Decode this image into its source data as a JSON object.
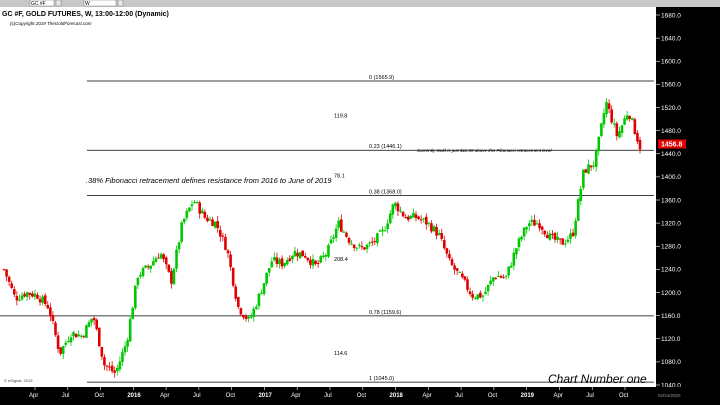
{
  "toolbar": {
    "symbol_field": "GC #F",
    "period_field": "W"
  },
  "chart_title": "GC #F, GOLD FUTURES, W, 13:00-12:00 (Dynamic)",
  "copyright": "(c)Copyright 2019 TheGoldForecast.com",
  "watermark_label": "Chart Number one",
  "footer_left": "© eSignal, 2019",
  "footer_right": "02/24/2020",
  "colors": {
    "up_candle": "#00c800",
    "down_candle": "#e00000",
    "price_badge": "#e00000",
    "axis_bg": "#000000",
    "toolbar_bg": "#c8c8c8"
  },
  "chart_data": {
    "type": "candlestick",
    "title": "GC #F, GOLD FUTURES, W, 13:00-12:00 (Dynamic)",
    "y_axis": {
      "range": [
        1040,
        1680
      ],
      "ticks": [
        1680.0,
        1640.0,
        1600.0,
        1560.0,
        1520.0,
        1480.0,
        1440.0,
        1400.0,
        1360.0,
        1320.0,
        1280.0,
        1240.0,
        1200.0,
        1160.0,
        1120.0,
        1080.0,
        1040.0
      ],
      "side": "right"
    },
    "x_axis": {
      "ticks": [
        "Apr",
        "Jul",
        "Oct",
        "2016",
        "Apr",
        "Jul",
        "Oct",
        "2017",
        "Apr",
        "Jul",
        "Oct",
        "2018",
        "Apr",
        "Jul",
        "Oct",
        "2019",
        "Apr",
        "Jul",
        "Oct"
      ]
    },
    "last_price": "1456.8",
    "close_path": [
      [
        "Feb 2015",
        1240
      ],
      [
        "Mar 2015",
        1190
      ],
      [
        "Apr 2015",
        1200
      ],
      [
        "May 2015",
        1195
      ],
      [
        "Jun 2015",
        1175
      ],
      [
        "Jul 2015",
        1095
      ],
      [
        "Aug 2015",
        1130
      ],
      [
        "Sep 2015",
        1125
      ],
      [
        "Oct 2015",
        1160
      ],
      [
        "Nov 2015",
        1075
      ],
      [
        "Dec 2015",
        1060
      ],
      [
        "Jan 2016",
        1115
      ],
      [
        "Feb 2016",
        1230
      ],
      [
        "Mar 2016",
        1245
      ],
      [
        "Apr 2016",
        1270
      ],
      [
        "May 2016",
        1220
      ],
      [
        "Jun 2016",
        1320
      ],
      [
        "Jul 2016",
        1360
      ],
      [
        "Aug 2016",
        1330
      ],
      [
        "Sep 2016",
        1320
      ],
      [
        "Oct 2016",
        1275
      ],
      [
        "Nov 2016",
        1175
      ],
      [
        "Dec 2016",
        1150
      ],
      [
        "Jan 2017",
        1200
      ],
      [
        "Feb 2017",
        1255
      ],
      [
        "Mar 2017",
        1250
      ],
      [
        "Apr 2017",
        1270
      ],
      [
        "May 2017",
        1265
      ],
      [
        "Jun 2017",
        1245
      ],
      [
        "Jul 2017",
        1270
      ],
      [
        "Aug 2017",
        1320
      ],
      [
        "Sep 2017",
        1290
      ],
      [
        "Oct 2017",
        1275
      ],
      [
        "Nov 2017",
        1285
      ],
      [
        "Dec 2017",
        1305
      ],
      [
        "Jan 2018",
        1355
      ],
      [
        "Feb 2018",
        1330
      ],
      [
        "Mar 2018",
        1330
      ],
      [
        "Apr 2018",
        1320
      ],
      [
        "May 2018",
        1300
      ],
      [
        "Jun 2018",
        1250
      ],
      [
        "Jul 2018",
        1225
      ],
      [
        "Aug 2018",
        1195
      ],
      [
        "Sep 2018",
        1195
      ],
      [
        "Oct 2018",
        1230
      ],
      [
        "Nov 2018",
        1225
      ],
      [
        "Dec 2018",
        1280
      ],
      [
        "Jan 2019",
        1320
      ],
      [
        "Feb 2019",
        1320
      ],
      [
        "Mar 2019",
        1295
      ],
      [
        "Apr 2019",
        1285
      ],
      [
        "May 2019",
        1300
      ],
      [
        "Jun 2019",
        1410
      ],
      [
        "Jul 2019",
        1425
      ],
      [
        "Aug 2019",
        1530
      ],
      [
        "Sep 2019",
        1470
      ],
      [
        "Oct 2019",
        1515
      ],
      [
        "Nov 2019",
        1455
      ]
    ],
    "fibonacci_levels": [
      {
        "ratio": "0",
        "price": 1565.9,
        "label": "0 (1565.9)"
      },
      {
        "ratio": "0.23",
        "price": 1446.1,
        "label": "0.23 (1446.1)"
      },
      {
        "ratio": "0.38",
        "price": 1368.0,
        "label": "0.38 (1368.0)"
      },
      {
        "ratio": "0.78",
        "price": 1159.6,
        "label": "0.78 (1159.6)"
      },
      {
        "ratio": "1",
        "price": 1045.0,
        "label": "1 (1045.0)"
      }
    ],
    "distance_labels": [
      {
        "text": "119.8",
        "price": 1506
      },
      {
        "text": "78.1",
        "price": 1402
      },
      {
        "text": "208.4",
        "price": 1258
      },
      {
        "text": "114.6",
        "price": 1095
      }
    ],
    "annotations": {
      "fib_note": ".38% Fibonacci retracement  defines resistance from 2016 to June of 2019",
      "gold_note": "Currently Gold is just $11.00 above this Fibonacci retracement level"
    }
  }
}
